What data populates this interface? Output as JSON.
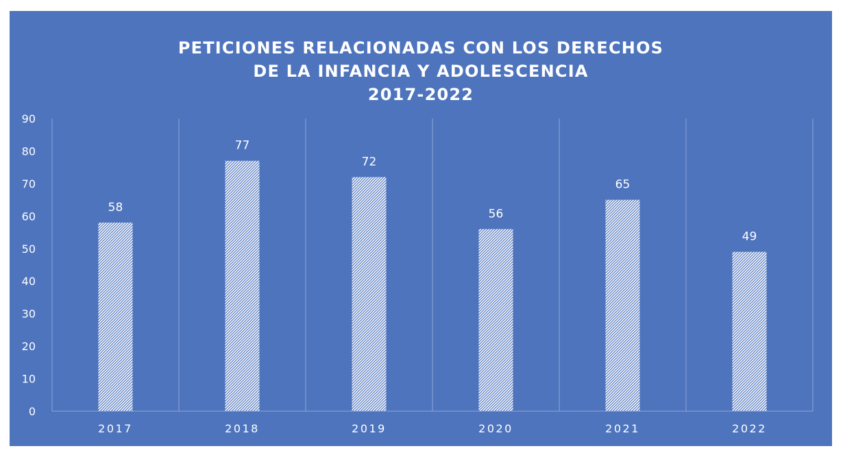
{
  "chart_data": {
    "type": "bar",
    "title_lines": [
      "PETICIONES RELACIONADAS CON LOS DERECHOS",
      "DE LA INFANCIA Y ADOLESCENCIA",
      "2017-2022"
    ],
    "categories": [
      "2017",
      "2018",
      "2019",
      "2020",
      "2021",
      "2022"
    ],
    "values": [
      58,
      77,
      72,
      56,
      65,
      49
    ],
    "data_labels": [
      "58",
      "77",
      "72",
      "56",
      "65",
      "49"
    ],
    "y_ticks": [
      "0",
      "10",
      "20",
      "30",
      "40",
      "50",
      "60",
      "70",
      "80",
      "90"
    ],
    "ylim": [
      0,
      90
    ],
    "xlabel": "",
    "ylabel": "",
    "grid": "vertical category separators",
    "legend": "none",
    "colors": {
      "background": "#4e74bd",
      "bar_fill": "#ffffff",
      "bar_hatch": "#4e74bd",
      "text": "#ffffff",
      "grid": "#8ea6d8"
    }
  }
}
